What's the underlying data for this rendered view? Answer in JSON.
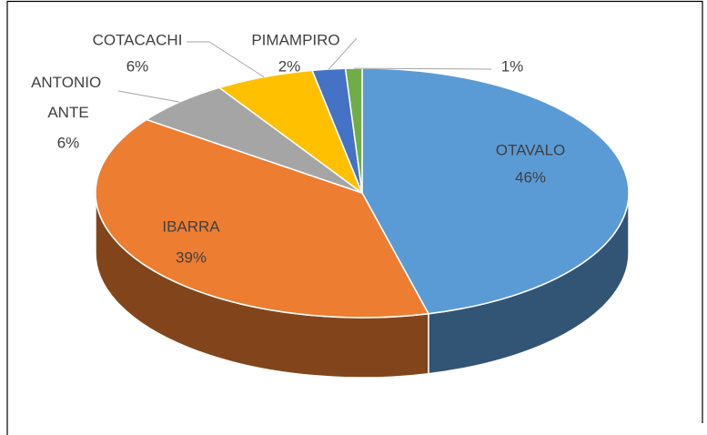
{
  "chart_data": {
    "type": "pie",
    "categories": [
      "OTAVALO",
      "IBARRA",
      "ANTONIO ANTE",
      "COTACACHI",
      "PIMAMPIRO",
      null
    ],
    "values": [
      46,
      39,
      6,
      6,
      2,
      1
    ],
    "value_labels": [
      "46%",
      "39%",
      "6%",
      "6%",
      "2%",
      "1%"
    ],
    "colors": [
      "#5b9bd5",
      "#ed7d31",
      "#a5a5a5",
      "#ffc000",
      "#4472c4",
      "#70ad47"
    ]
  }
}
